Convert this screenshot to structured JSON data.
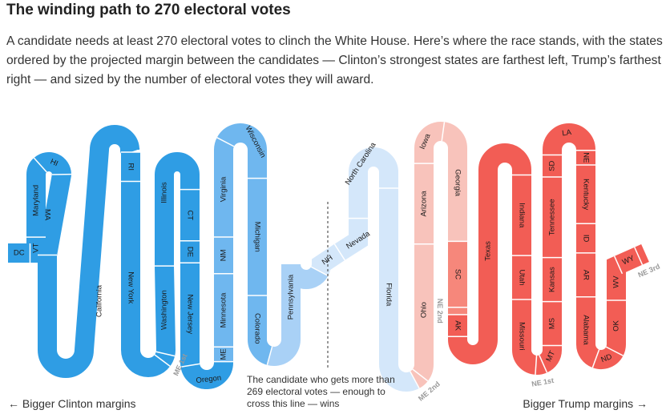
{
  "header": {
    "title": "The winding path to 270 electoral votes",
    "subtitle": "A candidate needs at least 270 electoral votes to clinch the White House. Here’s where the race stands, with the states ordered by the projected margin between the candidates — Clinton’s strongest states are farthest left, Trump’s farthest right — and sized by the number of electoral votes they will award."
  },
  "annotations": {
    "threshold_note": "The candidate who gets more than 269 electoral votes — enough to cross this line — wins",
    "left_margin": "← Bigger Clinton margins",
    "right_margin": "Bigger Trump margins →"
  },
  "colors": {
    "clinton_solid": "#2f9de4",
    "clinton_likely": "#6fb7ef",
    "clinton_lean": "#a9d1f6",
    "tossup_clinton": "#d4e7fa",
    "trump_lean": "#f8c3bb",
    "trump_likely": "#f6877b",
    "trump_solid": "#f25d55",
    "divider": "#ffffff",
    "threshold_line": "#333333"
  },
  "chart_data": {
    "type": "winding-path",
    "order": "Clinton strongest to Trump strongest",
    "threshold": 270,
    "total": 538,
    "states": [
      {
        "label": "DC",
        "ev": 3,
        "color": "#2f9de4"
      },
      {
        "label": "VT",
        "ev": 3,
        "color": "#2f9de4"
      },
      {
        "label": "Maryland",
        "ev": 10,
        "color": "#2f9de4"
      },
      {
        "label": "HI",
        "ev": 4,
        "color": "#2f9de4"
      },
      {
        "label": "MA",
        "ev": 11,
        "color": "#2f9de4"
      },
      {
        "label": "California",
        "ev": 55,
        "color": "#2f9de4"
      },
      {
        "label": "RI",
        "ev": 4,
        "color": "#2f9de4"
      },
      {
        "label": "New York",
        "ev": 29,
        "color": "#2f9de4"
      },
      {
        "label": "ME 1st",
        "ev": 1,
        "color": "#2f9de4",
        "outside": true
      },
      {
        "label": "Washington",
        "ev": 12,
        "color": "#2f9de4"
      },
      {
        "label": "Illinois",
        "ev": 20,
        "color": "#2f9de4"
      },
      {
        "label": "CT",
        "ev": 7,
        "color": "#2f9de4"
      },
      {
        "label": "DE",
        "ev": 3,
        "color": "#2f9de4"
      },
      {
        "label": "New Jersey",
        "ev": 14,
        "color": "#2f9de4"
      },
      {
        "label": "Oregon",
        "ev": 7,
        "color": "#2f9de4"
      },
      {
        "label": "ME",
        "ev": 2,
        "color": "#6fb7ef"
      },
      {
        "label": "Minnesota",
        "ev": 10,
        "color": "#6fb7ef"
      },
      {
        "label": "NM",
        "ev": 5,
        "color": "#6fb7ef"
      },
      {
        "label": "Virginia",
        "ev": 13,
        "color": "#6fb7ef"
      },
      {
        "label": "Wisconsin",
        "ev": 10,
        "color": "#6fb7ef"
      },
      {
        "label": "Michigan",
        "ev": 16,
        "color": "#6fb7ef"
      },
      {
        "label": "Colorado",
        "ev": 9,
        "color": "#6fb7ef"
      },
      {
        "label": "Pennsylvania",
        "ev": 20,
        "color": "#a9d1f6"
      },
      {
        "label": "NH",
        "ev": 4,
        "color": "#d4e7fa"
      },
      {
        "label": "Nevada",
        "ev": 6,
        "color": "#d4e7fa"
      },
      {
        "label": "North Carolina",
        "ev": 15,
        "color": "#d4e7fa"
      },
      {
        "label": "Florida",
        "ev": 29,
        "color": "#d4e7fa"
      },
      {
        "label": "ME 2nd",
        "ev": 1,
        "color": "#f8c3bb",
        "outside": true
      },
      {
        "label": "Ohio",
        "ev": 18,
        "color": "#f8c3bb"
      },
      {
        "label": "Arizona",
        "ev": 11,
        "color": "#f8c3bb"
      },
      {
        "label": "Iowa",
        "ev": 6,
        "color": "#f8c3bb"
      },
      {
        "label": "Georgia",
        "ev": 16,
        "color": "#f8c3bb"
      },
      {
        "label": "SC",
        "ev": 9,
        "color": "#f6877b"
      },
      {
        "label": "NE 2nd",
        "ev": 1,
        "color": "#f6877b",
        "outside": true
      },
      {
        "label": "AK",
        "ev": 3,
        "color": "#f25d55"
      },
      {
        "label": "Texas",
        "ev": 38,
        "color": "#f25d55"
      },
      {
        "label": "Indiana",
        "ev": 11,
        "color": "#f25d55"
      },
      {
        "label": "Utah",
        "ev": 6,
        "color": "#f25d55"
      },
      {
        "label": "Missouri",
        "ev": 10,
        "color": "#f25d55"
      },
      {
        "label": "NE 1st",
        "ev": 1,
        "color": "#f25d55",
        "outside": true
      },
      {
        "label": "MT",
        "ev": 3,
        "color": "#f25d55"
      },
      {
        "label": "MS",
        "ev": 6,
        "color": "#f25d55"
      },
      {
        "label": "Kansas",
        "ev": 6,
        "color": "#f25d55"
      },
      {
        "label": "Tennessee",
        "ev": 11,
        "color": "#f25d55"
      },
      {
        "label": "SD",
        "ev": 3,
        "color": "#f25d55"
      },
      {
        "label": "LA",
        "ev": 8,
        "color": "#f25d55"
      },
      {
        "label": "NE",
        "ev": 2,
        "color": "#f25d55"
      },
      {
        "label": "Kentucky",
        "ev": 8,
        "color": "#f25d55"
      },
      {
        "label": "ID",
        "ev": 4,
        "color": "#f25d55"
      },
      {
        "label": "AR",
        "ev": 6,
        "color": "#f25d55"
      },
      {
        "label": "Alabama",
        "ev": 9,
        "color": "#f25d55"
      },
      {
        "label": "ND",
        "ev": 3,
        "color": "#f25d55"
      },
      {
        "label": "OK",
        "ev": 7,
        "color": "#f25d55"
      },
      {
        "label": "WV",
        "ev": 5,
        "color": "#f25d55"
      },
      {
        "label": "WY",
        "ev": 3,
        "color": "#f25d55"
      },
      {
        "label": "NE 3rd",
        "ev": 1,
        "color": "#f25d55",
        "outside": true
      }
    ]
  }
}
